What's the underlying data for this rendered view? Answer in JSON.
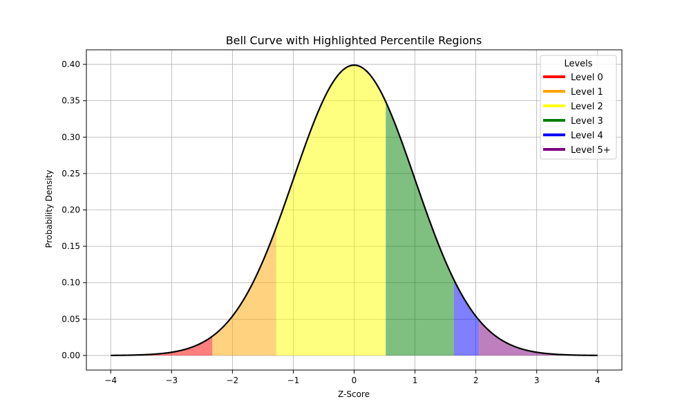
{
  "chart_data": {
    "type": "area",
    "title": "Bell Curve with Highlighted Percentile Regions",
    "xlabel": "Z-Score",
    "ylabel": "Probability Density",
    "xlim": [
      -4.4,
      4.4
    ],
    "ylim": [
      -0.02,
      0.42
    ],
    "x_range": [
      -4,
      4
    ],
    "xticks": [
      -4,
      -3,
      -2,
      -1,
      0,
      1,
      2,
      3,
      4
    ],
    "xtick_labels": [
      "−4",
      "−3",
      "−2",
      "−1",
      "0",
      "1",
      "2",
      "3",
      "4"
    ],
    "yticks": [
      0.0,
      0.05,
      0.1,
      0.15,
      0.2,
      0.25,
      0.3,
      0.35,
      0.4
    ],
    "ytick_labels": [
      "0.00",
      "0.05",
      "0.10",
      "0.15",
      "0.20",
      "0.25",
      "0.30",
      "0.35",
      "0.40"
    ],
    "grid": true,
    "curve": {
      "function": "standard normal pdf",
      "color": "#000000"
    },
    "regions": [
      {
        "name": "Level 0",
        "from": -4,
        "to": -2.33,
        "color": "#ff0000",
        "opacity": 0.5
      },
      {
        "name": "Level 1",
        "from": -2.33,
        "to": -1.28,
        "color": "#ffa500",
        "opacity": 0.5
      },
      {
        "name": "Level 2",
        "from": -1.28,
        "to": 0.52,
        "color": "#ffff00",
        "opacity": 0.5
      },
      {
        "name": "Level 3",
        "from": 0.52,
        "to": 1.64,
        "color": "#008000",
        "opacity": 0.5
      },
      {
        "name": "Level 4",
        "from": 1.64,
        "to": 2.05,
        "color": "#0000ff",
        "opacity": 0.5
      },
      {
        "name": "Level 5+",
        "from": 2.05,
        "to": 4,
        "color": "#800080",
        "opacity": 0.5
      }
    ],
    "legend": {
      "title": "Levels",
      "placement": "top-right",
      "entries": [
        "Level 0",
        "Level 1",
        "Level 2",
        "Level 3",
        "Level 4",
        "Level 5+"
      ]
    }
  }
}
